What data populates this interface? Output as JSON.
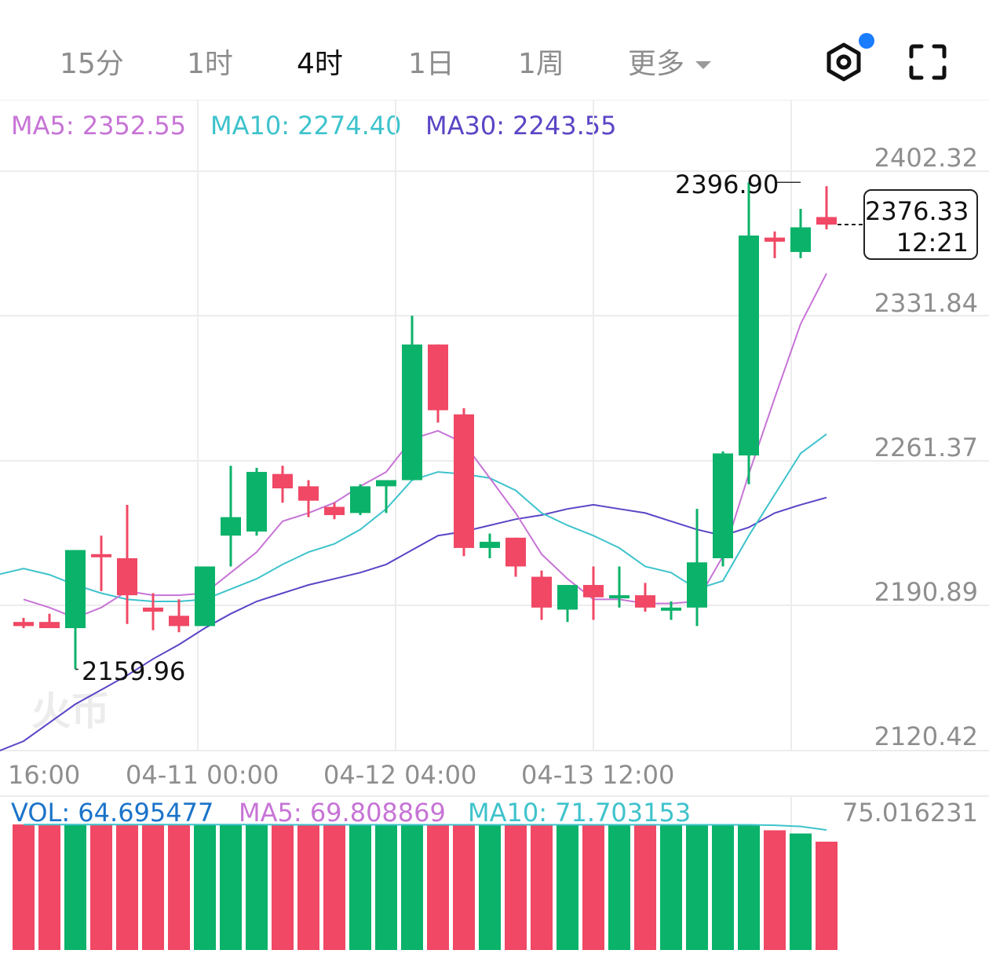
{
  "tabs": {
    "items": [
      "15分",
      "1时",
      "4时",
      "1日",
      "1周"
    ],
    "active": "4时",
    "more_label": "更多"
  },
  "icons": {
    "settings": "settings-hex-icon",
    "fullscreen": "fullscreen-icon",
    "notification_dot": "notification-dot"
  },
  "colors": {
    "up": "#0bb26a",
    "down": "#f04865",
    "ma5": "#c774d6",
    "ma10": "#3ec3cc",
    "ma30": "#5a45c6",
    "vol": "#1a73c9"
  },
  "legend": {
    "ma5": "MA5: 2352.55",
    "ma10": "MA10: 2274.40",
    "ma30": "MA30: 2243.55"
  },
  "price_axis": [
    "2402.32",
    "2331.84",
    "2261.37",
    "2190.89",
    "2120.42"
  ],
  "time_axis": [
    "16:00",
    "04-11 00:00",
    "04-12 04:00",
    "04-13 12:00"
  ],
  "annotations": {
    "high": "2396.90",
    "low": "2159.96",
    "last_price": "2376.33",
    "last_time": "12:21"
  },
  "volume": {
    "vol_label": "VOL: 64.695477",
    "ma5_label": "MA5: 69.808869",
    "ma10_label": "MA10: 71.703153",
    "max_label": "75.016231"
  },
  "watermark": "火币",
  "chart_data": {
    "type": "candlestick",
    "ylim": [
      2120.42,
      2402.32
    ],
    "candles": [
      {
        "o": 2183,
        "h": 2185,
        "l": 2180,
        "c": 2181
      },
      {
        "o": 2183,
        "h": 2187,
        "l": 2180,
        "c": 2180
      },
      {
        "o": 2180,
        "h": 2218,
        "l": 2160,
        "c": 2218
      },
      {
        "o": 2216,
        "h": 2225,
        "l": 2198,
        "c": 2215
      },
      {
        "o": 2214,
        "h": 2240,
        "l": 2182,
        "c": 2196
      },
      {
        "o": 2190,
        "h": 2197,
        "l": 2179,
        "c": 2188
      },
      {
        "o": 2186,
        "h": 2194,
        "l": 2178,
        "c": 2181
      },
      {
        "o": 2181,
        "h": 2210,
        "l": 2181,
        "c": 2210
      },
      {
        "o": 2225,
        "h": 2259,
        "l": 2210,
        "c": 2234
      },
      {
        "o": 2227,
        "h": 2258,
        "l": 2225,
        "c": 2256
      },
      {
        "o": 2255,
        "h": 2259,
        "l": 2241,
        "c": 2248
      },
      {
        "o": 2249,
        "h": 2252,
        "l": 2234,
        "c": 2242
      },
      {
        "o": 2239,
        "h": 2241,
        "l": 2233,
        "c": 2235
      },
      {
        "o": 2236,
        "h": 2250,
        "l": 2235,
        "c": 2249
      },
      {
        "o": 2249,
        "h": 2252,
        "l": 2236,
        "c": 2252
      },
      {
        "o": 2252,
        "h": 2332,
        "l": 2252,
        "c": 2318
      },
      {
        "o": 2318,
        "h": 2318,
        "l": 2280,
        "c": 2286
      },
      {
        "o": 2284,
        "h": 2287,
        "l": 2215,
        "c": 2219
      },
      {
        "o": 2219,
        "h": 2226,
        "l": 2214,
        "c": 2222
      },
      {
        "o": 2224,
        "h": 2224,
        "l": 2205,
        "c": 2210
      },
      {
        "o": 2205,
        "h": 2208,
        "l": 2184,
        "c": 2190
      },
      {
        "o": 2189,
        "h": 2201,
        "l": 2183,
        "c": 2201
      },
      {
        "o": 2201,
        "h": 2210,
        "l": 2184,
        "c": 2195
      },
      {
        "o": 2196,
        "h": 2210,
        "l": 2190,
        "c": 2196
      },
      {
        "o": 2196,
        "h": 2202,
        "l": 2188,
        "c": 2190
      },
      {
        "o": 2189,
        "h": 2193,
        "l": 2184,
        "c": 2190
      },
      {
        "o": 2190,
        "h": 2238,
        "l": 2181,
        "c": 2212
      },
      {
        "o": 2214,
        "h": 2266,
        "l": 2210,
        "c": 2265
      },
      {
        "o": 2264,
        "h": 2396.9,
        "l": 2250,
        "c": 2371
      },
      {
        "o": 2370,
        "h": 2373,
        "l": 2360,
        "c": 2368
      },
      {
        "o": 2363,
        "h": 2384,
        "l": 2360,
        "c": 2375
      },
      {
        "o": 2380,
        "h": 2395,
        "l": 2374,
        "c": 2376.33
      }
    ],
    "ma5": [
      [
        0,
        2194
      ],
      [
        1,
        2190
      ],
      [
        2,
        2185
      ],
      [
        3,
        2190
      ],
      [
        4,
        2198
      ],
      [
        5,
        2196
      ],
      [
        6,
        2196
      ],
      [
        7,
        2197
      ],
      [
        8,
        2207
      ],
      [
        9,
        2217
      ],
      [
        10,
        2232
      ],
      [
        11,
        2236
      ],
      [
        12,
        2241
      ],
      [
        13,
        2249
      ],
      [
        14,
        2256
      ],
      [
        15,
        2272
      ],
      [
        16,
        2276
      ],
      [
        17,
        2270
      ],
      [
        18,
        2253
      ],
      [
        19,
        2236
      ],
      [
        20,
        2216
      ],
      [
        21,
        2204
      ],
      [
        22,
        2194
      ],
      [
        23,
        2194
      ],
      [
        24,
        2192
      ],
      [
        25,
        2192
      ],
      [
        26,
        2193
      ],
      [
        27,
        2215
      ],
      [
        28,
        2255
      ],
      [
        29,
        2292
      ],
      [
        30,
        2328
      ],
      [
        31,
        2352.55
      ]
    ],
    "ma10": [
      [
        -1,
        2206
      ],
      [
        0,
        2209
      ],
      [
        1,
        2206
      ],
      [
        2,
        2201
      ],
      [
        3,
        2197
      ],
      [
        4,
        2194
      ],
      [
        5,
        2193
      ],
      [
        6,
        2193
      ],
      [
        7,
        2194
      ],
      [
        8,
        2199
      ],
      [
        9,
        2204
      ],
      [
        10,
        2211
      ],
      [
        11,
        2217
      ],
      [
        12,
        2221
      ],
      [
        13,
        2228
      ],
      [
        14,
        2238
      ],
      [
        15,
        2252
      ],
      [
        16,
        2256
      ],
      [
        17,
        2255
      ],
      [
        18,
        2253
      ],
      [
        19,
        2247
      ],
      [
        20,
        2236
      ],
      [
        21,
        2230
      ],
      [
        22,
        2225
      ],
      [
        23,
        2219
      ],
      [
        24,
        2210
      ],
      [
        25,
        2207
      ],
      [
        26,
        2199
      ],
      [
        27,
        2203
      ],
      [
        28,
        2225
      ],
      [
        29,
        2245
      ],
      [
        30,
        2265
      ],
      [
        31,
        2274.4
      ]
    ],
    "ma30": [
      [
        -1,
        2120
      ],
      [
        0,
        2125
      ],
      [
        1,
        2134
      ],
      [
        2,
        2143
      ],
      [
        3,
        2150
      ],
      [
        4,
        2157
      ],
      [
        5,
        2165
      ],
      [
        6,
        2172
      ],
      [
        7,
        2180
      ],
      [
        8,
        2187
      ],
      [
        9,
        2193
      ],
      [
        10,
        2197
      ],
      [
        11,
        2201
      ],
      [
        12,
        2204
      ],
      [
        13,
        2207
      ],
      [
        14,
        2211
      ],
      [
        15,
        2218
      ],
      [
        16,
        2225
      ],
      [
        17,
        2227
      ],
      [
        18,
        2230
      ],
      [
        19,
        2233
      ],
      [
        20,
        2235
      ],
      [
        21,
        2238
      ],
      [
        22,
        2240
      ],
      [
        23,
        2238
      ],
      [
        24,
        2236
      ],
      [
        25,
        2232
      ],
      [
        26,
        2228
      ],
      [
        27,
        2225
      ],
      [
        28,
        2229
      ],
      [
        29,
        2236
      ],
      [
        30,
        2240
      ],
      [
        31,
        2243.55
      ]
    ],
    "volume": {
      "ylim": [
        0,
        75.016231
      ],
      "values": [
        75.0,
        75.0,
        75.0,
        75.0,
        75.0,
        75.0,
        75.0,
        75.0,
        75.0,
        75.0,
        74.8,
        74.8,
        74.8,
        74.8,
        74.8,
        74.8,
        74.8,
        74.8,
        74.8,
        74.8,
        74.8,
        74.8,
        74.8,
        74.8,
        74.8,
        74.8,
        74.8,
        74.8,
        74.8,
        71.5,
        69.6,
        64.695477
      ],
      "ma_line": [
        74.9,
        74.9,
        74.9,
        74.9,
        74.9,
        74.9,
        74.9,
        74.9,
        74.9,
        74.9,
        74.8,
        74.8,
        74.8,
        74.8,
        74.8,
        74.8,
        74.8,
        74.8,
        74.8,
        74.8,
        74.8,
        74.8,
        74.8,
        74.8,
        74.8,
        74.8,
        74.8,
        74.8,
        74.8,
        74.5,
        73.8,
        71.7
      ]
    }
  }
}
